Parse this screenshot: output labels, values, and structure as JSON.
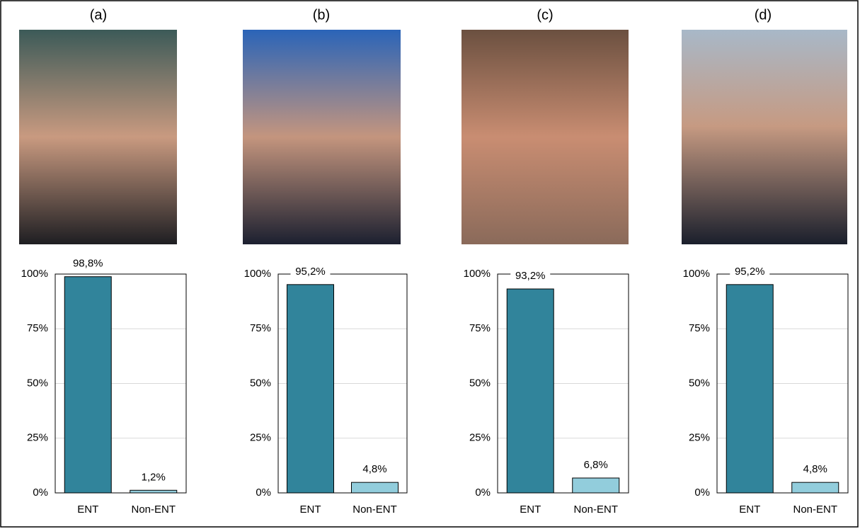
{
  "chart_data": [
    {
      "type": "bar",
      "title": "(a)",
      "categories": [
        "ENT",
        "Non-ENT"
      ],
      "values": [
        98.8,
        1.2
      ],
      "value_labels": [
        "98,8%",
        "1,2%"
      ],
      "colors": [
        "#31849b",
        "#92cddc"
      ],
      "ylim": [
        0,
        100
      ],
      "yticks": [
        {
          "value": 0,
          "label": "0%"
        },
        {
          "value": 25,
          "label": "25%"
        },
        {
          "value": 50,
          "label": "50%"
        },
        {
          "value": 75,
          "label": "75%"
        },
        {
          "value": 100,
          "label": "100%"
        }
      ],
      "grid": true
    },
    {
      "type": "bar",
      "title": "(b)",
      "categories": [
        "ENT",
        "Non-ENT"
      ],
      "values": [
        95.2,
        4.8
      ],
      "value_labels": [
        "95,2%",
        "4,8%"
      ],
      "colors": [
        "#31849b",
        "#92cddc"
      ],
      "ylim": [
        0,
        100
      ],
      "yticks": [
        {
          "value": 0,
          "label": "0%"
        },
        {
          "value": 25,
          "label": "25%"
        },
        {
          "value": 50,
          "label": "50%"
        },
        {
          "value": 75,
          "label": "75%"
        },
        {
          "value": 100,
          "label": "100%"
        }
      ],
      "grid": true
    },
    {
      "type": "bar",
      "title": "(c)",
      "categories": [
        "ENT",
        "Non-ENT"
      ],
      "values": [
        93.2,
        6.8
      ],
      "value_labels": [
        "93,2%",
        "6,8%"
      ],
      "colors": [
        "#31849b",
        "#92cddc"
      ],
      "ylim": [
        0,
        100
      ],
      "yticks": [
        {
          "value": 0,
          "label": "0%"
        },
        {
          "value": 25,
          "label": "25%"
        },
        {
          "value": 50,
          "label": "50%"
        },
        {
          "value": 75,
          "label": "75%"
        },
        {
          "value": 100,
          "label": "100%"
        }
      ],
      "grid": true
    },
    {
      "type": "bar",
      "title": "(d)",
      "categories": [
        "ENT",
        "Non-ENT"
      ],
      "values": [
        95.2,
        4.8
      ],
      "value_labels": [
        "95,2%",
        "4,8%"
      ],
      "colors": [
        "#31849b",
        "#92cddc"
      ],
      "ylim": [
        0,
        100
      ],
      "yticks": [
        {
          "value": 0,
          "label": "0%"
        },
        {
          "value": 25,
          "label": "25%"
        },
        {
          "value": 50,
          "label": "50%"
        },
        {
          "value": 75,
          "label": "75%"
        },
        {
          "value": 100,
          "label": "100%"
        }
      ],
      "grid": true
    }
  ]
}
